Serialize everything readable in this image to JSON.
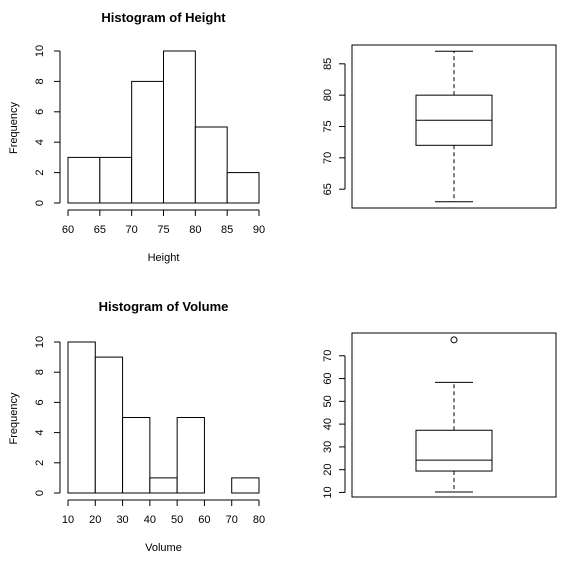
{
  "chart_data": [
    {
      "type": "bar",
      "title": "Histogram of Height",
      "xlabel": "Height",
      "ylabel": "Frequency",
      "bins": [
        [
          60,
          65
        ],
        [
          65,
          70
        ],
        [
          70,
          75
        ],
        [
          75,
          80
        ],
        [
          80,
          85
        ],
        [
          85,
          90
        ]
      ],
      "values": [
        3,
        3,
        8,
        10,
        5,
        2
      ],
      "xlim": [
        60,
        90
      ],
      "ylim": [
        0,
        10
      ],
      "xticks": [
        60,
        65,
        70,
        75,
        80,
        85,
        90
      ],
      "yticks": [
        0,
        2,
        4,
        6,
        8,
        10
      ]
    },
    {
      "type": "box",
      "title": "",
      "ylabel": "",
      "min": 63,
      "q1": 72,
      "median": 76,
      "q3": 80,
      "max": 87,
      "outliers": [],
      "ylim": [
        62,
        88
      ],
      "yticks": [
        65,
        70,
        75,
        80,
        85
      ]
    },
    {
      "type": "bar",
      "title": "Histogram of Volume",
      "xlabel": "Volume",
      "ylabel": "Frequency",
      "bins": [
        [
          10,
          20
        ],
        [
          20,
          30
        ],
        [
          30,
          40
        ],
        [
          40,
          50
        ],
        [
          50,
          60
        ],
        [
          60,
          70
        ],
        [
          70,
          80
        ]
      ],
      "values": [
        10,
        9,
        5,
        1,
        5,
        0,
        1
      ],
      "xlim": [
        10,
        80
      ],
      "ylim": [
        0,
        10
      ],
      "xticks": [
        10,
        20,
        30,
        40,
        50,
        60,
        70,
        80
      ],
      "yticks": [
        0,
        2,
        4,
        6,
        8,
        10
      ]
    },
    {
      "type": "box",
      "title": "",
      "ylabel": "",
      "min": 10.2,
      "q1": 19.4,
      "median": 24.2,
      "q3": 37.3,
      "max": 58.3,
      "outliers": [
        77
      ],
      "ylim": [
        8,
        80
      ],
      "yticks": [
        10,
        20,
        30,
        40,
        50,
        60,
        70
      ]
    }
  ]
}
